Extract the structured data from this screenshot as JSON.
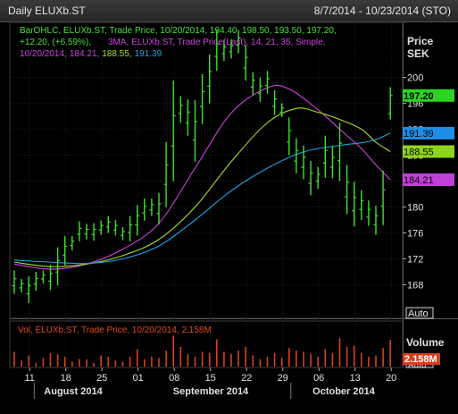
{
  "window": {
    "title": "Daily ELUXb.ST",
    "date_range": "8/7/2014 - 10/23/2014 (STO)"
  },
  "legend": {
    "ohlc_line1": "BarOHLC, ELUXb.ST, Trade Price, 10/20/2014, 194.40, 198.50, 193.50, 197.20,",
    "ohlc_line2": "+12.20, (+6.59%),",
    "ma_line2": "3MA, ELUXb.ST, Trade Price(Last),  14, 21, 35, Simple,",
    "ma_date": "10/20/2014,",
    "ma_val1": "184.21,",
    "ma_val2": "188.55,",
    "ma_val3": "191.39"
  },
  "price_axis": {
    "title_line1": "Price",
    "title_line2": "SEK",
    "auto_label": "Auto",
    "last_price_label": "197.20",
    "ma_labels": [
      "191.39",
      "188.55",
      "184.21"
    ]
  },
  "volume_panel": {
    "legend": "Vol, ELUXb.ST, Trade Price, 10/20/2014, 2.158M",
    "title": "Volume",
    "last_label": "2.158M",
    "auto_label": "Auto"
  },
  "x_axis": {
    "day_ticks": [
      "11",
      "18",
      "25",
      "01",
      "08",
      "15",
      "22",
      "29",
      "06",
      "13",
      "20"
    ],
    "month_labels": [
      "August 2014",
      "September 2014",
      "October 2014"
    ]
  },
  "colors": {
    "bars": "#3fe02a",
    "ma1": "#cc44dd",
    "ma2": "#a8e020",
    "ma3": "#1ea0e6",
    "volume": "#d8401a",
    "last_price_tag": "#2bd420",
    "ma3_tag": "#1e8de6",
    "ma2_tag": "#8fd41c",
    "ma1_tag": "#c040d8"
  },
  "chart_data": {
    "type": "ohlc",
    "title": "Daily ELUXb.ST",
    "ylabel": "Price SEK",
    "ylim": [
      164,
      209
    ],
    "y_ticks": [
      168,
      172,
      176,
      180,
      184,
      188,
      192,
      196,
      200
    ],
    "date_ticks": [
      "2014-08-11",
      "2014-08-18",
      "2014-08-25",
      "2014-09-01",
      "2014-09-08",
      "2014-09-15",
      "2014-09-22",
      "2014-09-29",
      "2014-10-06",
      "2014-10-13",
      "2014-10-20"
    ],
    "bars": [
      {
        "date": "2014-08-07",
        "h": 170.2,
        "l": 166.6
      },
      {
        "date": "2014-08-08",
        "h": 168.9,
        "l": 166.8
      },
      {
        "date": "2014-08-11",
        "h": 169.3,
        "l": 165.2
      },
      {
        "date": "2014-08-12",
        "h": 170.0,
        "l": 167.1
      },
      {
        "date": "2014-08-13",
        "h": 170.2,
        "l": 168.2
      },
      {
        "date": "2014-08-14",
        "h": 171.1,
        "l": 167.2
      },
      {
        "date": "2014-08-15",
        "h": 173.8,
        "l": 167.9
      },
      {
        "date": "2014-08-18",
        "h": 175.5,
        "l": 171.0
      },
      {
        "date": "2014-08-19",
        "h": 175.5,
        "l": 173.3
      },
      {
        "date": "2014-08-20",
        "h": 177.8,
        "l": 174.7
      },
      {
        "date": "2014-08-21",
        "h": 177.4,
        "l": 175.0
      },
      {
        "date": "2014-08-22",
        "h": 177.5,
        "l": 174.8
      },
      {
        "date": "2014-08-25",
        "h": 177.9,
        "l": 175.7
      },
      {
        "date": "2014-08-26",
        "h": 178.6,
        "l": 176.0
      },
      {
        "date": "2014-08-27",
        "h": 178.0,
        "l": 175.6
      },
      {
        "date": "2014-08-28",
        "h": 176.9,
        "l": 174.9
      },
      {
        "date": "2014-08-29",
        "h": 178.6,
        "l": 174.7
      },
      {
        "date": "2014-09-01",
        "h": 180.3,
        "l": 175.6
      },
      {
        "date": "2014-09-02",
        "h": 181.3,
        "l": 177.9
      },
      {
        "date": "2014-09-03",
        "h": 181.3,
        "l": 178.6
      },
      {
        "date": "2014-09-04",
        "h": 182.2,
        "l": 177.3
      },
      {
        "date": "2014-09-05",
        "h": 190.0,
        "l": 180.0
      },
      {
        "date": "2014-09-08",
        "h": 199.5,
        "l": 184.0
      },
      {
        "date": "2014-09-09",
        "h": 197.1,
        "l": 193.0
      },
      {
        "date": "2014-09-10",
        "h": 196.6,
        "l": 191.0
      },
      {
        "date": "2014-09-11",
        "h": 196.5,
        "l": 187.0
      },
      {
        "date": "2014-09-12",
        "h": 200.5,
        "l": 192.8
      },
      {
        "date": "2014-09-15",
        "h": 203.5,
        "l": 196.0
      },
      {
        "date": "2014-09-16",
        "h": 207.4,
        "l": 201.0
      },
      {
        "date": "2014-09-17",
        "h": 205.8,
        "l": 202.5
      },
      {
        "date": "2014-09-18",
        "h": 205.9,
        "l": 202.9
      },
      {
        "date": "2014-09-19",
        "h": 207.3,
        "l": 203.7
      },
      {
        "date": "2014-09-22",
        "h": 205.0,
        "l": 199.5
      },
      {
        "date": "2014-09-23",
        "h": 200.8,
        "l": 197.3
      },
      {
        "date": "2014-09-24",
        "h": 200.0,
        "l": 196.2
      },
      {
        "date": "2014-09-25",
        "h": 201.0,
        "l": 197.5
      },
      {
        "date": "2014-09-26",
        "h": 198.0,
        "l": 194.2
      },
      {
        "date": "2014-09-29",
        "h": 196.0,
        "l": 193.9
      },
      {
        "date": "2014-09-30",
        "h": 193.8,
        "l": 188.0
      },
      {
        "date": "2014-10-01",
        "h": 190.6,
        "l": 185.2
      },
      {
        "date": "2014-10-02",
        "h": 189.5,
        "l": 184.3
      },
      {
        "date": "2014-10-03",
        "h": 187.1,
        "l": 181.8
      },
      {
        "date": "2014-10-06",
        "h": 186.2,
        "l": 182.8
      },
      {
        "date": "2014-10-07",
        "h": 191.0,
        "l": 184.5
      },
      {
        "date": "2014-10-08",
        "h": 189.4,
        "l": 184.4
      },
      {
        "date": "2014-10-09",
        "h": 193.0,
        "l": 184.0
      },
      {
        "date": "2014-10-10",
        "h": 186.5,
        "l": 178.9
      },
      {
        "date": "2014-10-13",
        "h": 183.9,
        "l": 177.0
      },
      {
        "date": "2014-10-14",
        "h": 182.6,
        "l": 178.0
      },
      {
        "date": "2014-10-15",
        "h": 181.0,
        "l": 177.1
      },
      {
        "date": "2014-10-16",
        "h": 180.2,
        "l": 175.7
      },
      {
        "date": "2014-10-17",
        "h": 185.6,
        "l": 177.2
      },
      {
        "date": "2014-10-20",
        "h": 198.5,
        "l": 193.5,
        "o": 194.4,
        "c": 197.2
      }
    ],
    "moving_averages": [
      {
        "periods": 14,
        "last": 184.21,
        "values": [
          [
            0,
            171.2
          ],
          [
            5,
            170.4
          ],
          [
            10,
            171.2
          ],
          [
            15,
            173.5
          ],
          [
            20,
            177.5
          ],
          [
            25,
            186
          ],
          [
            30,
            194.5
          ],
          [
            35,
            198.4
          ],
          [
            38,
            198.2
          ],
          [
            42,
            195
          ],
          [
            45,
            192
          ],
          [
            48,
            189
          ],
          [
            50,
            186.5
          ],
          [
            52,
            184.21
          ]
        ]
      },
      {
        "periods": 21,
        "last": 188.55,
        "values": [
          [
            0,
            171.5
          ],
          [
            5,
            170.8
          ],
          [
            10,
            171.2
          ],
          [
            15,
            172.5
          ],
          [
            20,
            175
          ],
          [
            25,
            180
          ],
          [
            30,
            187
          ],
          [
            35,
            193
          ],
          [
            39,
            195.2
          ],
          [
            42,
            194.6
          ],
          [
            45,
            193.5
          ],
          [
            48,
            192
          ],
          [
            50,
            190
          ],
          [
            52,
            188.55
          ]
        ]
      },
      {
        "periods": 35,
        "last": 191.39,
        "values": [
          [
            0,
            171.8
          ],
          [
            5,
            171.5
          ],
          [
            10,
            171.3
          ],
          [
            15,
            172
          ],
          [
            20,
            174
          ],
          [
            25,
            178
          ],
          [
            30,
            182.5
          ],
          [
            35,
            186
          ],
          [
            40,
            188.5
          ],
          [
            45,
            189.5
          ],
          [
            48,
            189.9
          ],
          [
            50,
            190.4
          ],
          [
            52,
            191.39
          ]
        ]
      }
    ],
    "volume": {
      "last": "2.158M",
      "values": [
        1.2,
        0.5,
        0.9,
        0.3,
        0.7,
        1.1,
        1.0,
        0.8,
        0.4,
        0.6,
        0.6,
        0.3,
        0.9,
        0.8,
        0.5,
        0.4,
        0.8,
        1.4,
        0.6,
        0.8,
        0.7,
        1.3,
        2.5,
        1.6,
        1.0,
        0.8,
        1.2,
        1.1,
        2.2,
        1.2,
        1.0,
        1.3,
        1.6,
        0.9,
        0.6,
        0.8,
        1.1,
        0.7,
        1.5,
        1.3,
        1.2,
        1.0,
        0.8,
        1.4,
        1.1,
        2.3,
        1.6,
        1.7,
        1.1,
        0.8,
        0.9,
        1.5,
        2.158
      ]
    }
  }
}
